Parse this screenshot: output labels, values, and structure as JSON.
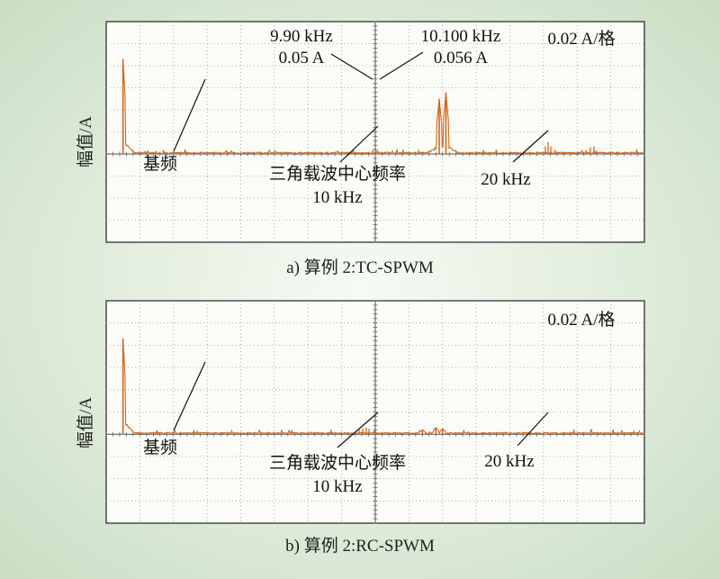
{
  "chart_data": [
    {
      "type": "line",
      "caption": "a) 算例 2:TC-SPWM",
      "ylabel": "幅值/A",
      "scale_label": "0.02 A/格",
      "xlim": [
        0,
        16
      ],
      "baseline_div": 4,
      "peaks": [
        {
          "x": 0.5,
          "amp": 0.086
        },
        {
          "x": 9.9,
          "amp": 0.05
        },
        {
          "x": 10.1,
          "amp": 0.056
        },
        {
          "x": 19.8,
          "amp": 0.008
        },
        {
          "x": 20.0,
          "amp": 0.012
        },
        {
          "x": 20.2,
          "amp": 0.008
        },
        {
          "x": 23.2,
          "amp": 0.006
        },
        {
          "x": 23.6,
          "amp": 0.007
        }
      ],
      "annotations": [
        {
          "id": "fund",
          "text": "基频"
        },
        {
          "id": "peak-left",
          "lines": [
            "9.90 kHz",
            "0.05 A"
          ]
        },
        {
          "id": "peak-right",
          "lines": [
            "10.100 kHz",
            "0.056 A"
          ]
        },
        {
          "id": "carrier",
          "lines": [
            "三角载波中心频率",
            "10 kHz"
          ]
        },
        {
          "id": "f20",
          "text": "20 kHz"
        }
      ]
    },
    {
      "type": "line",
      "caption": "b) 算例 2:RC-SPWM",
      "ylabel": "幅值/A",
      "scale_label": "0.02 A/格",
      "xlim": [
        0,
        16
      ],
      "baseline_div": 4,
      "peaks": [
        {
          "x": 0.5,
          "amp": 0.086
        },
        {
          "x": 9.4,
          "amp": 0.004
        },
        {
          "x": 9.8,
          "amp": 0.006
        },
        {
          "x": 10.0,
          "amp": 0.005
        }
      ],
      "annotations": [
        {
          "id": "fund",
          "text": "基频"
        },
        {
          "id": "carrier",
          "lines": [
            "三角载波中心频率",
            "10 kHz"
          ]
        },
        {
          "id": "f20",
          "text": "20 kHz"
        }
      ]
    }
  ]
}
